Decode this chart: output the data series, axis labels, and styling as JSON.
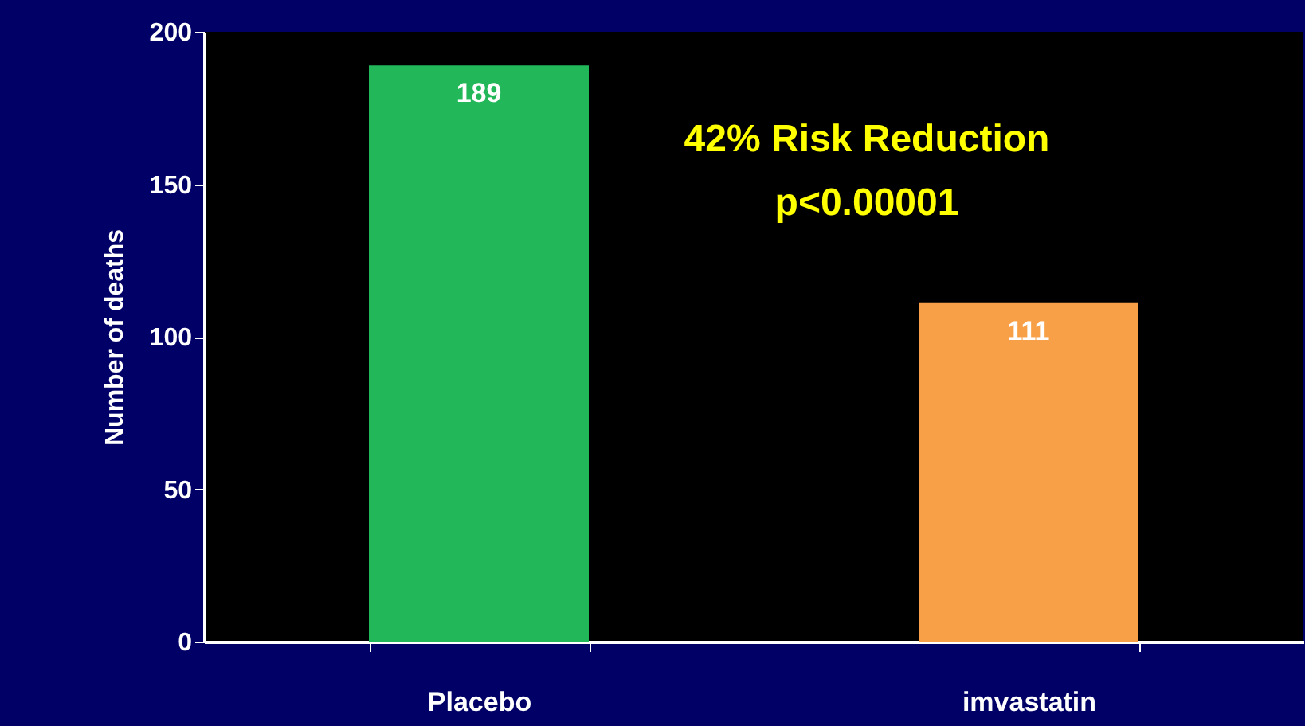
{
  "chart_data": {
    "type": "bar",
    "ylabel": "Number of deaths",
    "categories": [
      "Placebo",
      "imvastatin"
    ],
    "values": [
      189,
      111
    ],
    "colors": [
      "#22b85a",
      "#f8a048"
    ],
    "ylim": [
      0,
      200
    ],
    "yticks": [
      0,
      50,
      100,
      150,
      200
    ],
    "data_labels": true,
    "grid": false,
    "annotations": [
      "42% Risk Reduction",
      "p<0.00001"
    ]
  }
}
